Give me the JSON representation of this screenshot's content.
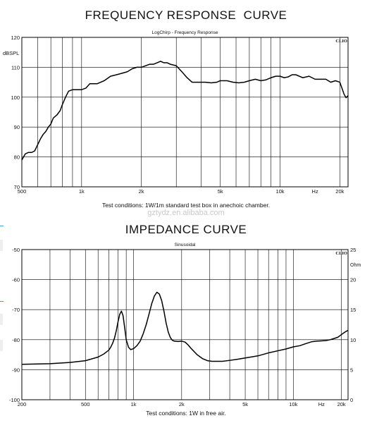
{
  "titles": {
    "frequency": "FREQUENCY RESPONSE  CURVE",
    "impedance": "IMPEDANCE CURVE"
  },
  "watermark": "gztydz.en.alibaba.com",
  "chart_data": [
    {
      "type": "line",
      "title": "LogChirp - Frequency Response",
      "brand": "CLIO",
      "caption": "Test conditions: 1W/1m standard test box in anechoic chamber.",
      "ylabel": "dBSPL",
      "xlabel": "Hz",
      "xscale": "log",
      "xlim": [
        500,
        22000
      ],
      "ylim": [
        70,
        120
      ],
      "grid": true,
      "xticks": [
        {
          "v": 500,
          "t": "500"
        },
        {
          "v": 1000,
          "t": "1k"
        },
        {
          "v": 2000,
          "t": "2k"
        },
        {
          "v": 5000,
          "t": "5k"
        },
        {
          "v": 10000,
          "t": "10k"
        },
        {
          "v": 15000,
          "t": "Hz"
        },
        {
          "v": 20000,
          "t": "20k"
        }
      ],
      "yticks": [
        {
          "v": 70,
          "t": "70"
        },
        {
          "v": 80,
          "t": "80"
        },
        {
          "v": 90,
          "t": "90"
        },
        {
          "v": 100,
          "t": "100"
        },
        {
          "v": 110,
          "t": "110"
        },
        {
          "v": 120,
          "t": "120"
        }
      ],
      "series": [
        {
          "x": [
            500,
            520,
            540,
            560,
            580,
            600,
            620,
            640,
            660,
            680,
            700,
            720,
            750,
            780,
            800,
            830,
            860,
            900,
            950,
            1000,
            1050,
            1100,
            1150,
            1200,
            1300,
            1400,
            1500,
            1600,
            1700,
            1800,
            1900,
            2000,
            2100,
            2200,
            2300,
            2400,
            2500,
            2600,
            2700,
            2800,
            3000,
            3200,
            3400,
            3600,
            3800,
            4000,
            4200,
            4500,
            4800,
            5000,
            5400,
            5800,
            6200,
            6600,
            7000,
            7500,
            8000,
            8500,
            9000,
            9500,
            10000,
            10500,
            11000,
            11500,
            12000,
            13000,
            14000,
            15000,
            16000,
            17000,
            18000,
            19000,
            20000,
            20500,
            21000,
            21500,
            22000
          ],
          "values": [
            79,
            81,
            81.5,
            81.5,
            82,
            84,
            86,
            87.5,
            88.5,
            90,
            91,
            93,
            94,
            95.5,
            97.5,
            100,
            102,
            102.5,
            102.5,
            102.5,
            103,
            104.5,
            104.5,
            104.5,
            105.5,
            107,
            107.5,
            108,
            108.5,
            109.5,
            110,
            110,
            110.5,
            111,
            111,
            111.5,
            112,
            111.5,
            111.5,
            111,
            110.5,
            108.5,
            106.5,
            105,
            105,
            105,
            105,
            104.8,
            105,
            105.5,
            105.5,
            105,
            104.8,
            105,
            105.5,
            106,
            105.5,
            105.8,
            106.5,
            107,
            107,
            106.5,
            106.8,
            107.5,
            107.5,
            106.5,
            107,
            106,
            106,
            106,
            105,
            105.5,
            105,
            103,
            101,
            99.8,
            100.5
          ]
        }
      ]
    },
    {
      "type": "line",
      "title": "Sinusoidal",
      "brand": "CLIO",
      "caption": "Test conditions: 1W in free air.",
      "xlabel": "Hz",
      "ylabel_right": "Ohm",
      "xscale": "log",
      "xlim": [
        200,
        22000
      ],
      "ylim": [
        -100,
        -50
      ],
      "ylim_right": [
        0,
        25
      ],
      "grid": true,
      "xticks": [
        {
          "v": 200,
          "t": "200"
        },
        {
          "v": 500,
          "t": "500"
        },
        {
          "v": 1000,
          "t": "1k"
        },
        {
          "v": 2000,
          "t": "2k"
        },
        {
          "v": 5000,
          "t": "5k"
        },
        {
          "v": 10000,
          "t": "10k"
        },
        {
          "v": 15000,
          "t": "Hz"
        },
        {
          "v": 20000,
          "t": "20k"
        }
      ],
      "yticks": [
        {
          "v": -100,
          "t": "-100"
        },
        {
          "v": -90,
          "t": "-90"
        },
        {
          "v": -80,
          "t": "-80"
        },
        {
          "v": -70,
          "t": "-70"
        },
        {
          "v": -60,
          "t": "-60"
        },
        {
          "v": -50,
          "t": "-50"
        }
      ],
      "yticks_right": [
        {
          "v": 0,
          "t": "0"
        },
        {
          "v": 5,
          "t": "5"
        },
        {
          "v": 10,
          "t": "10"
        },
        {
          "v": 15,
          "t": "15"
        },
        {
          "v": 20,
          "t": "20"
        },
        {
          "v": 25,
          "t": "25"
        }
      ],
      "series": [
        {
          "x": [
            200,
            300,
            400,
            500,
            600,
            650,
            700,
            720,
            740,
            760,
            780,
            800,
            820,
            840,
            860,
            880,
            900,
            930,
            960,
            1000,
            1050,
            1100,
            1150,
            1200,
            1250,
            1300,
            1350,
            1400,
            1450,
            1500,
            1550,
            1600,
            1650,
            1700,
            1750,
            1800,
            1900,
            2000,
            2100,
            2200,
            2300,
            2500,
            2700,
            2900,
            3100,
            3300,
            3600,
            4000,
            4500,
            5000,
            6000,
            7000,
            8000,
            9000,
            10000,
            11000,
            12000,
            13000,
            14000,
            15000,
            16000,
            17000,
            18000,
            19000,
            20000,
            21000,
            22000
          ],
          "values": [
            -88.2,
            -88,
            -87.6,
            -87,
            -85.8,
            -84.8,
            -83.5,
            -82.5,
            -81.2,
            -79.5,
            -77,
            -74,
            -71.5,
            -70.5,
            -72,
            -76,
            -80,
            -82.5,
            -83.3,
            -83,
            -82,
            -80.5,
            -78,
            -75,
            -71.5,
            -68,
            -65.5,
            -64.2,
            -64.8,
            -67,
            -70.5,
            -74.5,
            -77.5,
            -79.3,
            -80.2,
            -80.5,
            -80.6,
            -80.5,
            -80.8,
            -81.8,
            -83,
            -85,
            -86.3,
            -87,
            -87.2,
            -87.2,
            -87.2,
            -86.9,
            -86.5,
            -86.1,
            -85.4,
            -84.4,
            -83.7,
            -83.1,
            -82.4,
            -82,
            -81.3,
            -80.7,
            -80.5,
            -80.4,
            -80.3,
            -80,
            -79.6,
            -79.2,
            -78.3,
            -77.5,
            -76.9
          ]
        }
      ]
    }
  ]
}
